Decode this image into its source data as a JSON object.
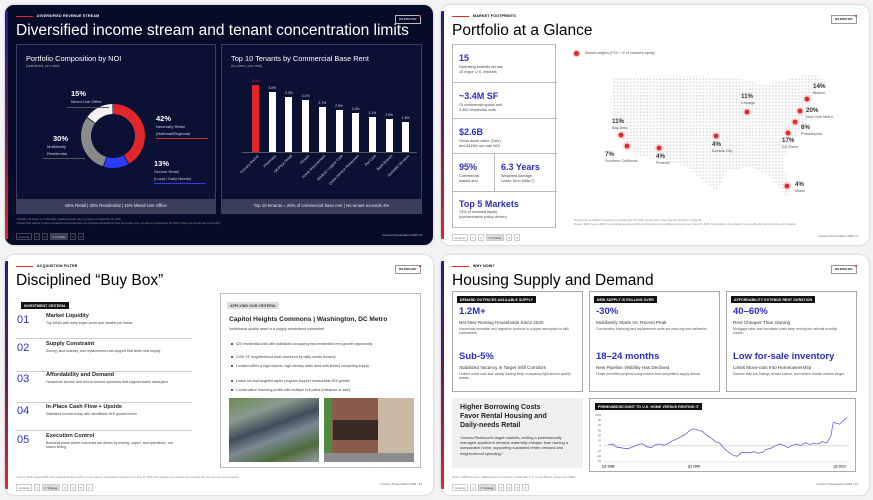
{
  "slides": {
    "income": {
      "eyebrow": "DIVERSIFIED REVENUE STREAM",
      "title": "Diversified income stream and tenant concentration limits",
      "logo": "REDWOOD",
      "noi": {
        "title": "Portfolio Composition by NOI",
        "subtitle": "(stabilized, pro rata)",
        "footer": "55% Retail | 30% Residential | 15% Mixed-Use Office"
      },
      "tenants": {
        "title": "Top 10 Tenants by Commercial Base Rent",
        "subtitle": "(in-place, pro rata)",
        "footer": "Top 10 tenants = 26% of commercial base rent | No tenant exceeds 4%"
      },
      "footnotes": [
        "¹ Portfolio mix shown on a NOI basis, stabilized assets only, pro rata as of September 30, 2025.",
        "² Tenant chart reflects in-place contractual commercial base rent (excludes residential rent and percentage rent), pro rata as of September 30, 2025. Totals may not sum due to rounding."
      ],
      "nav": {
        "items": [
          "Contents",
          "1",
          "2",
          "3. Portfolio",
          "4",
          "5"
        ],
        "active": 3
      },
      "page_label": "Investor Presentation 2025 | 8"
    },
    "portfolio": {
      "eyebrow": "MARKET FOOTPRINTS",
      "title": "Portfolio at a Glance",
      "logo": "REDWOOD",
      "stats": [
        {
          "value": "15",
          "lines": [
            "Operating portfolio across",
            "10 major U.S. markets"
          ]
        },
        {
          "value": "~3.4M SF",
          "lines": [
            "Of commercial space and",
            "3,450 residential units"
          ]
        },
        {
          "value": "$2.6B",
          "lines": [
            "Gross asset value (GAV)",
            "and $115M run-rate NOI"
          ]
        },
        {
          "value": "95%",
          "lines": [
            "Commercial",
            "leased and"
          ]
        },
        {
          "value": "6.3 Years",
          "lines": [
            "Weighted Average",
            "Lease Term (WALT)"
          ]
        },
        {
          "value": "Top 5 Markets",
          "lines": [
            "73% of invested equity",
            "(concentration policy-driven)"
          ]
        }
      ],
      "legend": "Market weights (POI = % of invested equity)",
      "markets": [
        {
          "name": "Chicago",
          "weight": "11%"
        },
        {
          "name": "Boston",
          "weight": "14%"
        },
        {
          "name": "New York Metro",
          "weight": "20%"
        },
        {
          "name": "Philadelphia",
          "weight": "8%"
        },
        {
          "name": "DC Metro",
          "weight": "17%"
        },
        {
          "name": "Bay Area",
          "weight": "11%"
        },
        {
          "name": "Southern California",
          "weight": "7%"
        },
        {
          "name": "Phoenix",
          "weight": "4%"
        },
        {
          "name": "Kansas City",
          "weight": "4%"
        },
        {
          "name": "Miami",
          "weight": "4%"
        }
      ],
      "marker_color": "#e0282b",
      "footnotes": [
        "¹ Represents consolidated properties as of September 30, 2025, except where noted. See POI definition on page 33.",
        "² Source: ESRI, August 2025. GLA-weighted averages within a 3-mile radius of consolidated properties as of June 30, 2025. Demographics are updated once annually after the end of the second quarter."
      ],
      "nav": {
        "items": [
          "Contents",
          "1",
          "2",
          "3. Portfolio",
          "4",
          "5"
        ],
        "active": 3
      },
      "page_label": "Investor Presentation 2025 | 2"
    },
    "buybox": {
      "eyebrow": "ACQUISITION FILTER",
      "title": "Disciplined “Buy Box”",
      "logo": "REDWOOD",
      "criteria_tag": "INVESTMENT CRITERIA",
      "criteria": [
        {
          "num": "01",
          "title": "Market Liquidity",
          "desc": "Top MSAs with deep buyer pools and durable job bases"
        },
        {
          "num": "02",
          "title": "Supply Constraint",
          "desc": "Zoning, land scarcity, and replacement-cost support that limits new supply"
        },
        {
          "num": "03",
          "title": "Affordability and Demand",
          "desc": "Household income and rent-to-income dynamics that support stable absorption"
        },
        {
          "num": "04",
          "title": "In-Place Cash Flow + Upside",
          "desc": "Stabilized income today with identifiable NOI growth levers"
        },
        {
          "num": "05",
          "title": "Execution Control",
          "desc": "Business plans where outcomes are driven by leasing, capex, and operations, not macro timing"
        }
      ],
      "case": {
        "tag": "APPLYING OUR CRITERIA",
        "title": "Capitol Heights Commons | Washington, DC Metro",
        "desc": "Institutional-quality asset in a supply-constrained submarket",
        "bullets": [
          "420 residential units with stabilized occupancy and embedded rent-growth opportunity",
          "210K SF neighborhood retail anchored by daily-needs tenancy",
          "Located within a high-income, high-density trade area with limited competing supply",
          "Lease roll and targeted capex program support measurable NOI growth",
          "Conservative financing profile with multiple exit paths (refinance or sale)"
        ]
      },
      "footnote": "¹ Source: ESRI, August 2025. GLA-weighted averages within a 3-mile radius of consolidated properties as of June 30, 2025. Demographics are updated once annually after the end of the second quarter.",
      "nav": {
        "items": [
          "Contents",
          "1",
          "2. Strategy",
          "3",
          "4",
          "5",
          "6"
        ],
        "active": 2
      },
      "page_label": "Investor Presentation 2025 | 10"
    },
    "housing": {
      "eyebrow": "WHY NOW?",
      "title": "Housing Supply and Demand",
      "logo": "REDWOOD",
      "columns": [
        {
          "tag": "DEMAND OUTPACES AVAILABLE SUPPLY",
          "items": [
            {
              "value": "1.2M+",
              "subtitle": "Net New Renting Households Since 2020",
              "desc": "Household formation and migration continue to support absorption in infill submarkets."
            },
            {
              "value": "Sub-5%",
              "subtitle": "Stabilized Vacancy in Target Infill Corridors",
              "desc": "Limited move-outs and steady leasing keep occupancy tight across quality assets."
            }
          ]
        },
        {
          "tag": "NEW SUPPLY IS ROLLING OVER",
          "items": [
            {
              "value": "-30%",
              "subtitle": "Multifamily Starts Vs. Recent Peak",
              "desc": "Construction financing and replacement costs are reducing new deliveries."
            },
            {
              "value": "18–24 months",
              "subtitle": "New Pipeline Visibility Has Declined",
              "desc": "Fewer permitted projects today means less competitive supply ahead."
            }
          ]
        },
        {
          "tag": "AFFORDABILITY EXTENDS RENT DURATION",
          "items": [
            {
              "value": "40–60%",
              "subtitle": "Rent Cheaper Than Owning",
              "desc": "Mortgage rates and insurance costs keep renting the rational monthly choice."
            },
            {
              "value": "Low for-sale inventory",
              "subtitle": "Limits Move-outs Into Homeownership",
              "desc": "Owners stay put, listings remain scarce, and renters remain renters longer."
            }
          ]
        }
      ],
      "callout": {
        "heading": [
          "Higher Borrowing Costs",
          "Favor Rental Housing and",
          "Daily-needs Retail"
        ],
        "quote": "“Across Redwood’s target markets, renting a professionally managed apartment remains materially cheaper than owning a comparable home, supporting sustained renter demand and neighborhood spending.”"
      },
      "source": "Source: CBRE Research, CBRE Econometric Advisors, Freddie Mac, U.S. Census Bureau, Realtor.com, FRED",
      "nav": {
        "items": [
          "Contents",
          "1",
          "2. Strategy",
          "3",
          "4",
          "5",
          "6"
        ],
        "active": 2
      },
      "page_label": "Investor Presentation 2025 | 12"
    }
  },
  "chart_data": [
    {
      "type": "pie",
      "title": "Portfolio Composition by NOI",
      "categories": [
        "Necessity Retail (National/Regional)",
        "Service Retail (Local / Daily Needs)",
        "Multifamily Residential",
        "Mixed-Use Office"
      ],
      "value_labels": [
        "42%",
        "13%",
        "30%",
        "15%"
      ],
      "label_lines": [
        [
          "Necessity Retail",
          "(National/Regional)"
        ],
        [
          "Service Retail",
          "(Local / Daily Needs)"
        ],
        [
          "Multifamily",
          "Residential"
        ],
        [
          "Mixed-Use Office"
        ]
      ],
      "values": [
        42,
        13,
        30,
        15
      ],
      "colors": [
        "#e0282b",
        "#2a3cff",
        "#8a8a8a",
        "#f2f2f2"
      ]
    },
    {
      "type": "bar",
      "title": "Top 10 Tenants by Commercial Base Rent",
      "categories": [
        "Grocery Anchor",
        "Pharmacy",
        "Off-Price Retail",
        "Fitness",
        "Home Improvement",
        "Medical / Urgent Care",
        "Quick-Service Restaurant",
        "Pet Care",
        "Bank Branch",
        "Specialty Services"
      ],
      "values": [
        4.0,
        3.6,
        3.3,
        3.1,
        2.7,
        2.5,
        2.3,
        2.1,
        2.0,
        1.8
      ],
      "value_labels": [
        "4.0%",
        "3.6%",
        "3.3%",
        "3.1%",
        "2.7%",
        "2.5%",
        "2.3%",
        "2.1%",
        "2.0%",
        "1.8%"
      ],
      "ylim": [
        0,
        4.0
      ],
      "colors": {
        "highlight": "#e0282b",
        "default": "#ffffff"
      }
    },
    {
      "type": "line",
      "title": "PREMIUM/DISCOUNT TO U.S. HOME VERSUS RENTING IT",
      "x": [
        1996.5,
        1997,
        1997.5,
        1998,
        1998.5,
        1999,
        1999.5,
        2000,
        2000.5,
        2001,
        2001.5,
        2002,
        2002.5,
        2003,
        2003.5,
        2004,
        2004.5,
        2005,
        2005.5,
        2006,
        2006.5,
        2007,
        2007.5,
        2008,
        2008.5,
        2009,
        2009.5,
        2010,
        2010.5,
        2011,
        2011.5,
        2012,
        2012.5,
        2013,
        2013.5,
        2014,
        2014.5,
        2015,
        2015.5,
        2016,
        2016.5,
        2017,
        2017.5,
        2018,
        2018.5,
        2019,
        2019.5,
        2020,
        2020.5,
        2021,
        2021.5,
        2022,
        2022.5,
        2022.75,
        2023,
        2023.5,
        2024,
        2024.4
      ],
      "values": [
        2,
        3,
        -3,
        -4,
        -6,
        -5,
        -1,
        2,
        4,
        -2,
        -4,
        2,
        3,
        1,
        4,
        10,
        13,
        18,
        22,
        30,
        33,
        30,
        28,
        20,
        15,
        8,
        5,
        -5,
        -12,
        -18,
        -21,
        -14,
        -13,
        -14,
        -12,
        -15,
        -13,
        -7,
        -5,
        0,
        3,
        1,
        -4,
        1,
        3,
        0,
        6,
        2,
        5,
        3,
        8,
        5,
        20,
        45,
        45,
        42,
        50,
        55
      ],
      "xlim": [
        1996,
        2024.6
      ],
      "ylim": [
        -30,
        60
      ],
      "y_ticks": [
        "60%",
        "50",
        "40",
        "30",
        "20",
        "10",
        "0",
        "-10",
        "-20",
        "-30"
      ],
      "y_tick_values": [
        60,
        50,
        40,
        30,
        20,
        10,
        0,
        -10,
        -20,
        -30
      ],
      "x_ticks": [
        "Q3 1996",
        "Q3 2006",
        "Q3 2023"
      ],
      "x_tick_values": [
        1996.5,
        2006.5,
        2023.5
      ],
      "line_color": "#6468d6"
    }
  ]
}
